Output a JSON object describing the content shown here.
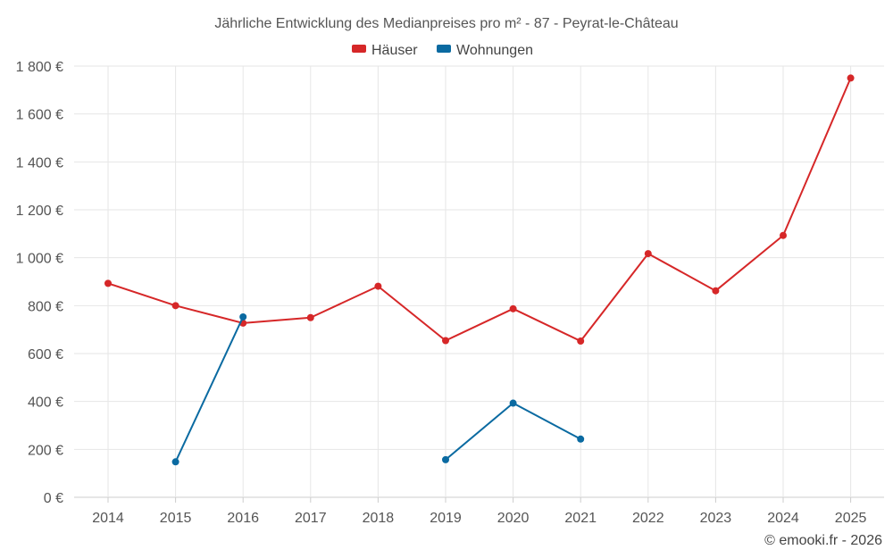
{
  "chart_data": {
    "type": "line",
    "title": "Jährliche Entwicklung des Medianpreises pro m² - 87 - Peyrat-le-Château",
    "xlabel": "",
    "ylabel": "",
    "categories": [
      "2014",
      "2015",
      "2016",
      "2017",
      "2018",
      "2019",
      "2020",
      "2021",
      "2022",
      "2023",
      "2024",
      "2025"
    ],
    "ylim": [
      0,
      1800
    ],
    "yticks": [
      0,
      200,
      400,
      600,
      800,
      1000,
      1200,
      1400,
      1600,
      1800
    ],
    "ytick_labels": [
      "0 €",
      "200 €",
      "400 €",
      "600 €",
      "800 €",
      "1 000 €",
      "1 200 €",
      "1 400 €",
      "1 600 €",
      "1 800 €"
    ],
    "grid": true,
    "legend_position": "top-center",
    "series": [
      {
        "name": "Häuser",
        "color": "#d62728",
        "values": [
          893,
          800,
          727,
          750,
          881,
          654,
          787,
          652,
          1017,
          862,
          1093,
          1750
        ]
      },
      {
        "name": "Wohnungen",
        "color": "#0a6aa1",
        "values": [
          null,
          148,
          753,
          null,
          null,
          157,
          393,
          243,
          null,
          null,
          null,
          null
        ]
      }
    ]
  },
  "credit": "© emooki.fr - 2026"
}
